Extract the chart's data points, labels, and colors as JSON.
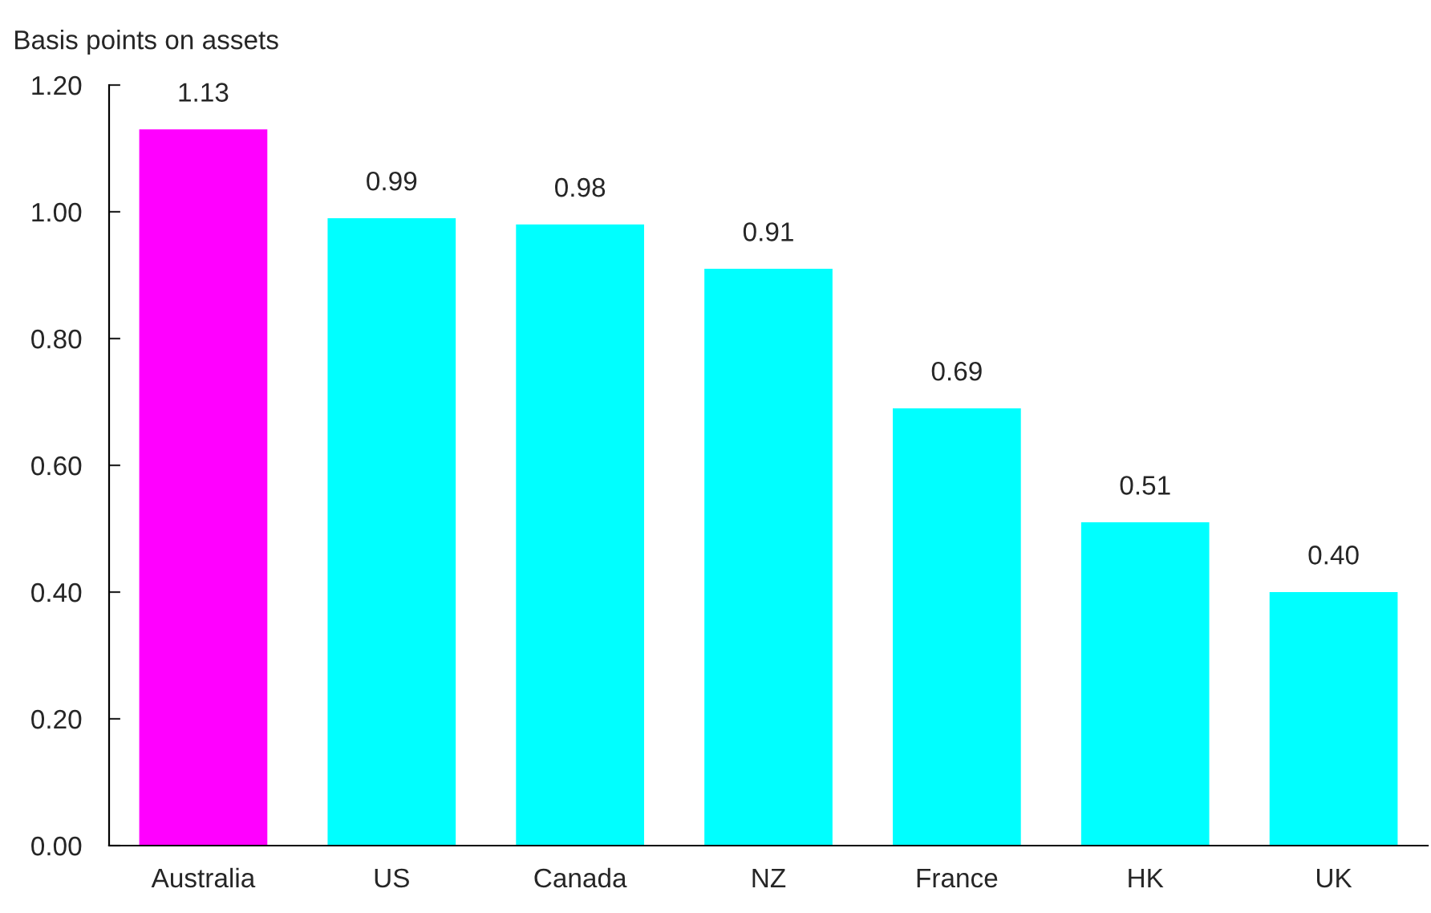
{
  "chart_data": {
    "type": "bar",
    "ylabel": "Basis points on assets",
    "categories": [
      "Australia",
      "US",
      "Canada",
      "NZ",
      "France",
      "HK",
      "UK"
    ],
    "values": [
      1.13,
      0.99,
      0.98,
      0.91,
      0.69,
      0.51,
      0.4
    ],
    "colors": [
      "#ff00ff",
      "#00ffff",
      "#00ffff",
      "#00ffff",
      "#00ffff",
      "#00ffff",
      "#00ffff"
    ],
    "value_labels": [
      "1.13",
      "0.99",
      "0.98",
      "0.91",
      "0.69",
      "0.51",
      "0.40"
    ],
    "ylim": [
      0,
      1.2
    ],
    "yticks": [
      {
        "value": 0,
        "label": "0.00"
      },
      {
        "value": 0.2,
        "label": "0.20"
      },
      {
        "value": 0.4,
        "label": "0.40"
      },
      {
        "value": 0.6,
        "label": "0.60"
      },
      {
        "value": 0.8,
        "label": "0.80"
      },
      {
        "value": 1.0,
        "label": "1.00"
      },
      {
        "value": 1.2,
        "label": "1.20"
      }
    ],
    "grid": false
  }
}
